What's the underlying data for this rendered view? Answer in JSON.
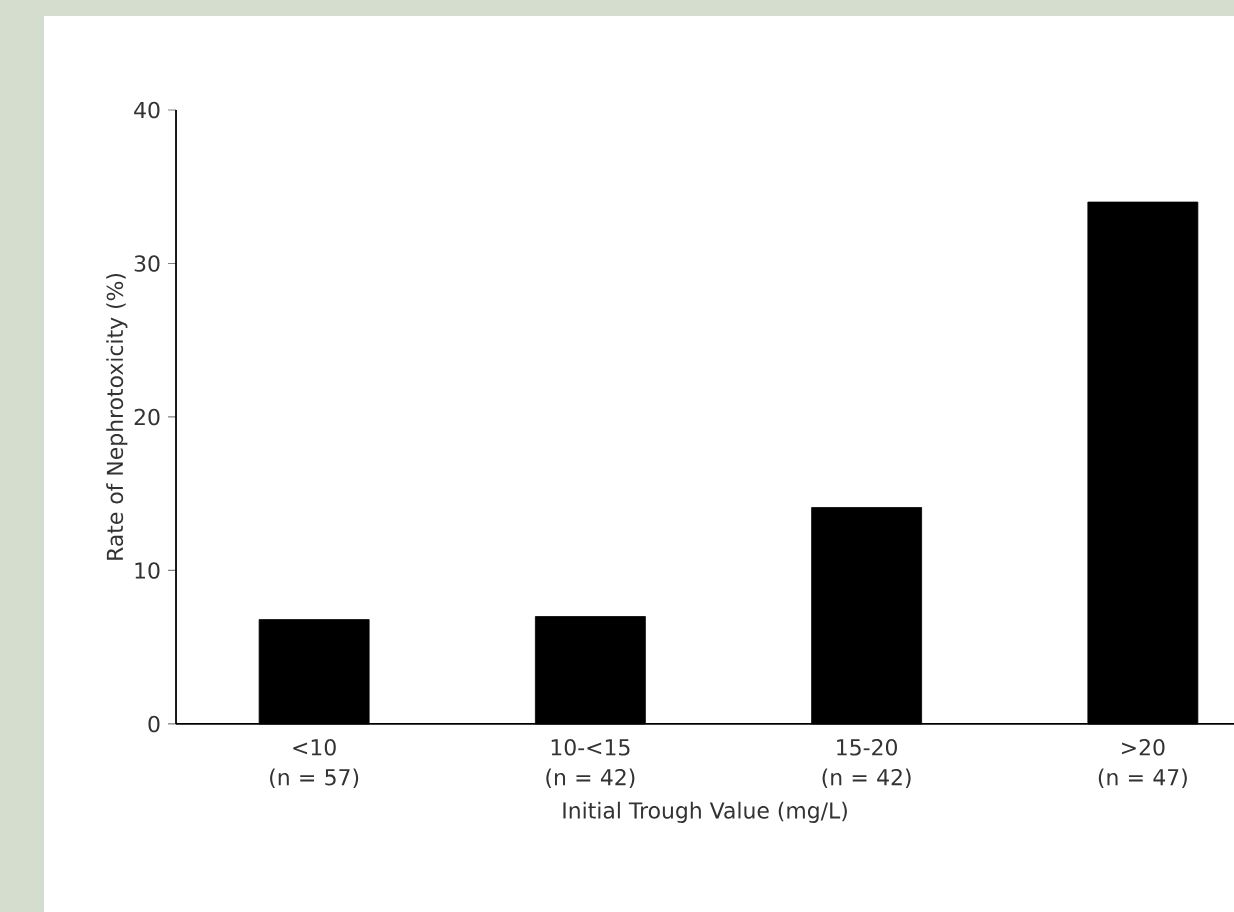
{
  "chart_data": {
    "type": "bar",
    "xlabel": "Initial Trough Value (mg/L)",
    "ylabel": "Rate of Nephrotoxicity (%)",
    "categories": [
      "<10 (n = 57)",
      "10-<15 (n = 42)",
      "15-20 (n = 42)",
      ">20 (n = 47)"
    ],
    "values": [
      6.8,
      7.0,
      14.1,
      34.0
    ],
    "color": "#000000",
    "ylim": [
      0,
      40
    ],
    "yticks": [
      0,
      10,
      20,
      30,
      40
    ],
    "grid": false
  }
}
